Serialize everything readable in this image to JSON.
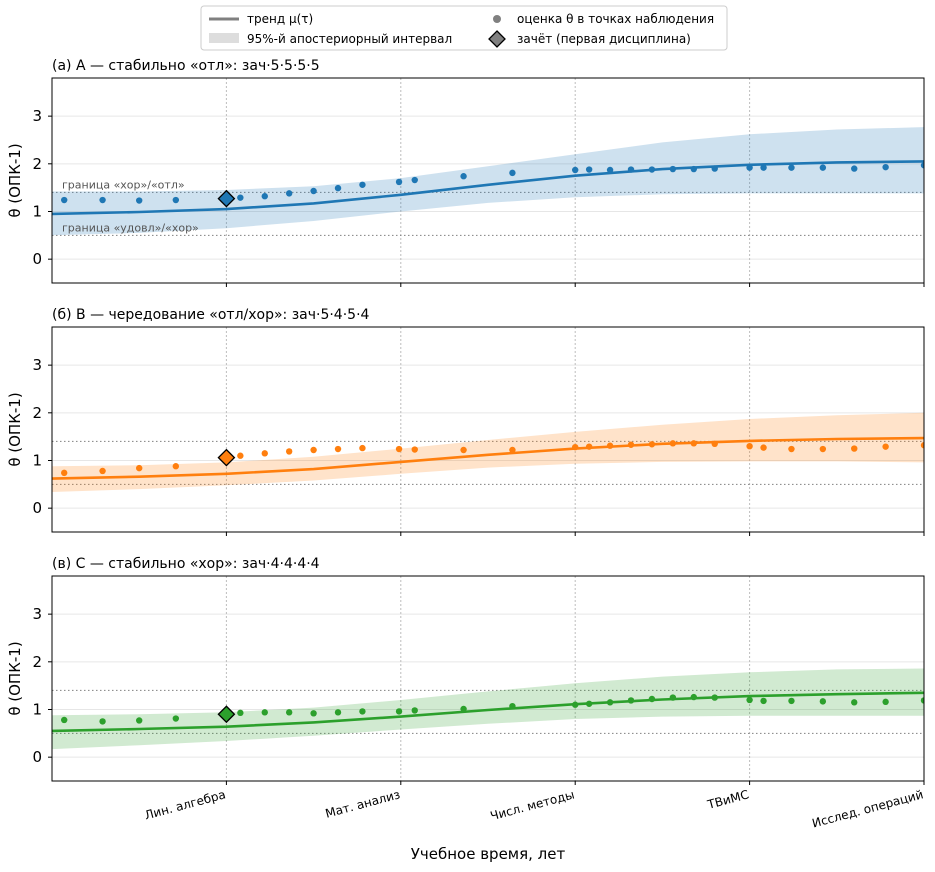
{
  "legend": {
    "trend": "тренд μ(τ)",
    "interval": "95%-й апостериорный интервал",
    "points": "оценка θ в точках наблюдения",
    "exam": "зачёт (первая дисциплина)"
  },
  "xlabel": "Учебное время, лет",
  "ylabel": "θ (ОПК-1)",
  "reference_labels": {
    "upper": "граница «хор»/«отл»",
    "lower": "граница «удовл»/«хор»"
  },
  "chart_data": {
    "type": "line",
    "xlim": [
      0,
      5
    ],
    "ylim": [
      -0.5,
      3.8
    ],
    "yticks": [
      0,
      1,
      2,
      3
    ],
    "xticks": [
      1,
      2,
      3,
      4,
      5
    ],
    "xtick_labels": [
      "Лин. алгебра",
      "Мат. анализ",
      "Числ. методы",
      "ТВиМС",
      "Исслед. операций"
    ],
    "reference_lines": [
      1.4,
      0.5
    ],
    "grid": true,
    "legend_position": "top-center",
    "obs_x": [
      0.07,
      0.29,
      0.5,
      0.71,
      1.08,
      1.22,
      1.36,
      1.5,
      1.64,
      1.78,
      1.99,
      2.08,
      2.36,
      2.64,
      3.0,
      3.08,
      3.2,
      3.32,
      3.44,
      3.56,
      3.68,
      3.8,
      4.0,
      4.08,
      4.24,
      4.42,
      4.6,
      4.78,
      5.0
    ],
    "panels": [
      {
        "title": "(а) A — стабильно «отл»: зач·5·5·5·5",
        "color": "#1f77b4",
        "trend": [
          [
            0,
            0.95
          ],
          [
            0.5,
            0.99
          ],
          [
            1,
            1.05
          ],
          [
            1.5,
            1.17
          ],
          [
            2,
            1.35
          ],
          [
            2.5,
            1.56
          ],
          [
            3,
            1.75
          ],
          [
            3.5,
            1.89
          ],
          [
            4,
            1.98
          ],
          [
            4.5,
            2.03
          ],
          [
            5,
            2.05
          ]
        ],
        "band_upper": [
          [
            0,
            1.42
          ],
          [
            0.5,
            1.42
          ],
          [
            1,
            1.45
          ],
          [
            1.5,
            1.53
          ],
          [
            2,
            1.7
          ],
          [
            2.5,
            1.95
          ],
          [
            3,
            2.2
          ],
          [
            3.5,
            2.45
          ],
          [
            4,
            2.62
          ],
          [
            4.5,
            2.72
          ],
          [
            5,
            2.77
          ]
        ],
        "band_lower": [
          [
            0,
            0.5
          ],
          [
            0.5,
            0.55
          ],
          [
            1,
            0.65
          ],
          [
            1.5,
            0.8
          ],
          [
            2,
            1.0
          ],
          [
            2.5,
            1.18
          ],
          [
            3,
            1.3
          ],
          [
            3.5,
            1.36
          ],
          [
            4,
            1.38
          ],
          [
            4.5,
            1.38
          ],
          [
            5,
            1.38
          ]
        ],
        "obs_y": [
          1.24,
          1.24,
          1.23,
          1.24,
          1.29,
          1.32,
          1.38,
          1.43,
          1.49,
          1.56,
          1.62,
          1.66,
          1.74,
          1.81,
          1.87,
          1.88,
          1.87,
          1.88,
          1.88,
          1.89,
          1.89,
          1.9,
          1.92,
          1.92,
          1.92,
          1.92,
          1.9,
          1.93,
          1.97
        ],
        "exam": [
          1.0,
          1.27
        ]
      },
      {
        "title": "(б) B — чередование «отл/хор»: зач·5·4·5·4",
        "color": "#ff7f0e",
        "trend": [
          [
            0,
            0.62
          ],
          [
            0.5,
            0.66
          ],
          [
            1,
            0.72
          ],
          [
            1.5,
            0.82
          ],
          [
            2,
            0.97
          ],
          [
            2.5,
            1.12
          ],
          [
            3,
            1.25
          ],
          [
            3.5,
            1.35
          ],
          [
            4,
            1.41
          ],
          [
            4.5,
            1.45
          ],
          [
            5,
            1.47
          ]
        ],
        "band_upper": [
          [
            0,
            0.88
          ],
          [
            0.5,
            0.9
          ],
          [
            1,
            0.96
          ],
          [
            1.5,
            1.08
          ],
          [
            2,
            1.25
          ],
          [
            2.5,
            1.43
          ],
          [
            3,
            1.6
          ],
          [
            3.5,
            1.75
          ],
          [
            4,
            1.87
          ],
          [
            4.5,
            1.95
          ],
          [
            5,
            2.0
          ]
        ],
        "band_lower": [
          [
            0,
            0.34
          ],
          [
            0.5,
            0.4
          ],
          [
            1,
            0.48
          ],
          [
            1.5,
            0.58
          ],
          [
            2,
            0.72
          ],
          [
            2.5,
            0.85
          ],
          [
            3,
            0.93
          ],
          [
            3.5,
            0.97
          ],
          [
            4,
            0.98
          ],
          [
            4.5,
            0.98
          ],
          [
            5,
            0.96
          ]
        ],
        "obs_y": [
          0.74,
          0.78,
          0.84,
          0.88,
          1.1,
          1.15,
          1.19,
          1.22,
          1.24,
          1.26,
          1.24,
          1.23,
          1.22,
          1.22,
          1.28,
          1.29,
          1.31,
          1.33,
          1.34,
          1.36,
          1.36,
          1.35,
          1.3,
          1.27,
          1.24,
          1.24,
          1.25,
          1.29,
          1.32
        ],
        "exam": [
          1.0,
          1.06
        ]
      },
      {
        "title": "(в) C — стабильно «хор»: зач·4·4·4·4",
        "color": "#2ca02c",
        "trend": [
          [
            0,
            0.55
          ],
          [
            0.5,
            0.59
          ],
          [
            1,
            0.64
          ],
          [
            1.5,
            0.73
          ],
          [
            2,
            0.85
          ],
          [
            2.5,
            0.99
          ],
          [
            3,
            1.11
          ],
          [
            3.5,
            1.21
          ],
          [
            4,
            1.28
          ],
          [
            4.5,
            1.32
          ],
          [
            5,
            1.35
          ]
        ],
        "band_upper": [
          [
            0,
            0.88
          ],
          [
            0.5,
            0.9
          ],
          [
            1,
            0.94
          ],
          [
            1.5,
            1.04
          ],
          [
            2,
            1.2
          ],
          [
            2.5,
            1.38
          ],
          [
            3,
            1.55
          ],
          [
            3.5,
            1.69
          ],
          [
            4,
            1.78
          ],
          [
            4.5,
            1.84
          ],
          [
            5,
            1.86
          ]
        ],
        "band_lower": [
          [
            0,
            0.17
          ],
          [
            0.5,
            0.25
          ],
          [
            1,
            0.34
          ],
          [
            1.5,
            0.45
          ],
          [
            2,
            0.58
          ],
          [
            2.5,
            0.7
          ],
          [
            3,
            0.8
          ],
          [
            3.5,
            0.85
          ],
          [
            4,
            0.87
          ],
          [
            4.5,
            0.87
          ],
          [
            5,
            0.87
          ]
        ],
        "obs_y": [
          0.78,
          0.75,
          0.77,
          0.81,
          0.93,
          0.94,
          0.94,
          0.92,
          0.94,
          0.96,
          0.96,
          0.98,
          1.01,
          1.07,
          1.1,
          1.12,
          1.15,
          1.19,
          1.22,
          1.25,
          1.26,
          1.25,
          1.2,
          1.18,
          1.18,
          1.17,
          1.15,
          1.16,
          1.19
        ],
        "exam": [
          1.0,
          0.9
        ]
      }
    ]
  }
}
